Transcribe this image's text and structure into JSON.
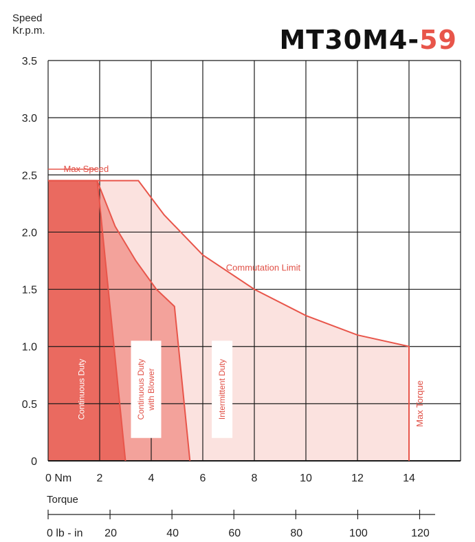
{
  "header": {
    "y_axis_title_line1": "Speed",
    "y_axis_title_line2": "Kr.p.m.",
    "model_base": "MT30M4-",
    "model_suffix": "59"
  },
  "colors": {
    "accent": "#e8554a",
    "continuous": "#ea6a60",
    "blower": "#f3a29b",
    "intermittent": "#fbe2df",
    "grid": "#1a1a1a"
  },
  "chart_data": {
    "type": "area",
    "title": "MT30M4-59",
    "ylabel": "Speed Kr.p.m.",
    "xlabel": "Torque",
    "x_unit_label": "Nm",
    "xlim": [
      0,
      16
    ],
    "ylim": [
      0,
      3.5
    ],
    "x_ticks": [
      "0 Nm",
      "2",
      "4",
      "6",
      "8",
      "10",
      "12",
      "14"
    ],
    "x_tick_values": [
      0,
      2,
      4,
      6,
      8,
      10,
      12,
      14
    ],
    "y_ticks": [
      "0",
      "0.5",
      "1.0",
      "1.5",
      "2.0",
      "2.5",
      "3.0",
      "3.5"
    ],
    "y_tick_values": [
      0,
      0.5,
      1.0,
      1.5,
      2.0,
      2.5,
      3.0,
      3.5
    ],
    "secondary_axis": {
      "label": "lb - in",
      "ticks": [
        "0 lb - in",
        "20",
        "40",
        "60",
        "80",
        "100",
        "120"
      ],
      "tick_values": [
        0,
        20,
        40,
        60,
        80,
        100,
        120
      ]
    },
    "grid": true,
    "series": [
      {
        "name": "Intermittent Duty",
        "points": [
          [
            0,
            2.45
          ],
          [
            3.5,
            2.45
          ],
          [
            4.5,
            2.15
          ],
          [
            6,
            1.8
          ],
          [
            8,
            1.5
          ],
          [
            10,
            1.27
          ],
          [
            12,
            1.1
          ],
          [
            14,
            1.0
          ],
          [
            14,
            0
          ]
        ]
      },
      {
        "name": "Continuous Duty with Blower",
        "points": [
          [
            0,
            2.45
          ],
          [
            1.9,
            2.45
          ],
          [
            2.6,
            2.05
          ],
          [
            3.4,
            1.75
          ],
          [
            4.2,
            1.5
          ],
          [
            4.9,
            1.35
          ],
          [
            5.5,
            0
          ]
        ]
      },
      {
        "name": "Continuous Duty",
        "points": [
          [
            0,
            2.45
          ],
          [
            1.9,
            2.45
          ],
          [
            2.0,
            2.25
          ],
          [
            3.0,
            0
          ]
        ]
      }
    ],
    "annotations": [
      "Max Speed",
      "Commutation Limit",
      "Max Torque"
    ]
  },
  "labels": {
    "max_speed": "Max Speed",
    "commutation_limit": "Commutation Limit",
    "max_torque": "Max Torque",
    "continuous_duty": "Continuous Duty",
    "blower_line1": "Continuous Duty",
    "blower_line2": "with Blower",
    "intermittent_duty": "Intermittent Duty",
    "torque": "Torque"
  }
}
